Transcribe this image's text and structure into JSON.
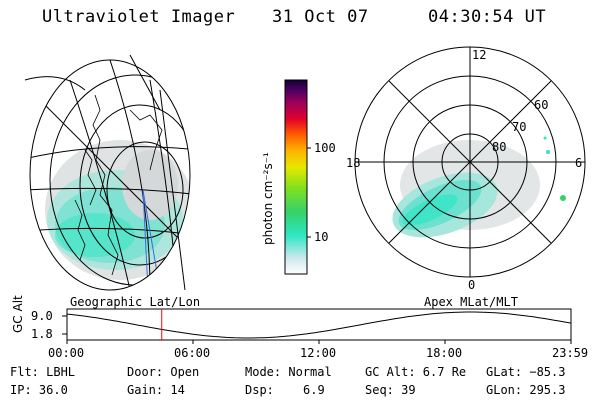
{
  "header": {
    "instrument": "Ultraviolet Imager",
    "date": "31 Oct 07",
    "time": "04:30:54 UT"
  },
  "colorbar": {
    "unit_label": "photon cm⁻²s⁻¹",
    "ticks": [
      "100",
      "10"
    ]
  },
  "polar_plot": {
    "lat_labels": [
      "80",
      "70",
      "60"
    ],
    "mlt_labels": [
      "12",
      "18",
      "6",
      "0"
    ]
  },
  "panels": {
    "left_label": "Geographic Lat/Lon",
    "right_label": "Apex MLat/MLT"
  },
  "alt_strip": {
    "axis_label": "GC Alt",
    "y_ticks": [
      "9.0",
      "1.8"
    ],
    "x_ticks": [
      "00:00",
      "06:00",
      "12:00",
      "18:00",
      "23:59"
    ],
    "current_time_fraction": 0.188
  },
  "info": {
    "flt": "Flt: LBHL",
    "ip": "IP: 36.0",
    "door": "Door: Open",
    "gain": "Gain: 14",
    "mode": "Mode: Normal",
    "dsp_label": "Dsp:",
    "dsp_value": "6.9",
    "gcalt": "GC Alt: 6.7 Re",
    "seq": "Seq: 39",
    "glat": "GLat: −85.3",
    "glon": "GLon: 295.3"
  },
  "colors": {
    "aurora_main": "#2ee6c4",
    "aurora_light": "#bfe8e0",
    "haze": "#d8dcdc",
    "marker": "#ff0000",
    "meridian": "#3a6ddb"
  }
}
